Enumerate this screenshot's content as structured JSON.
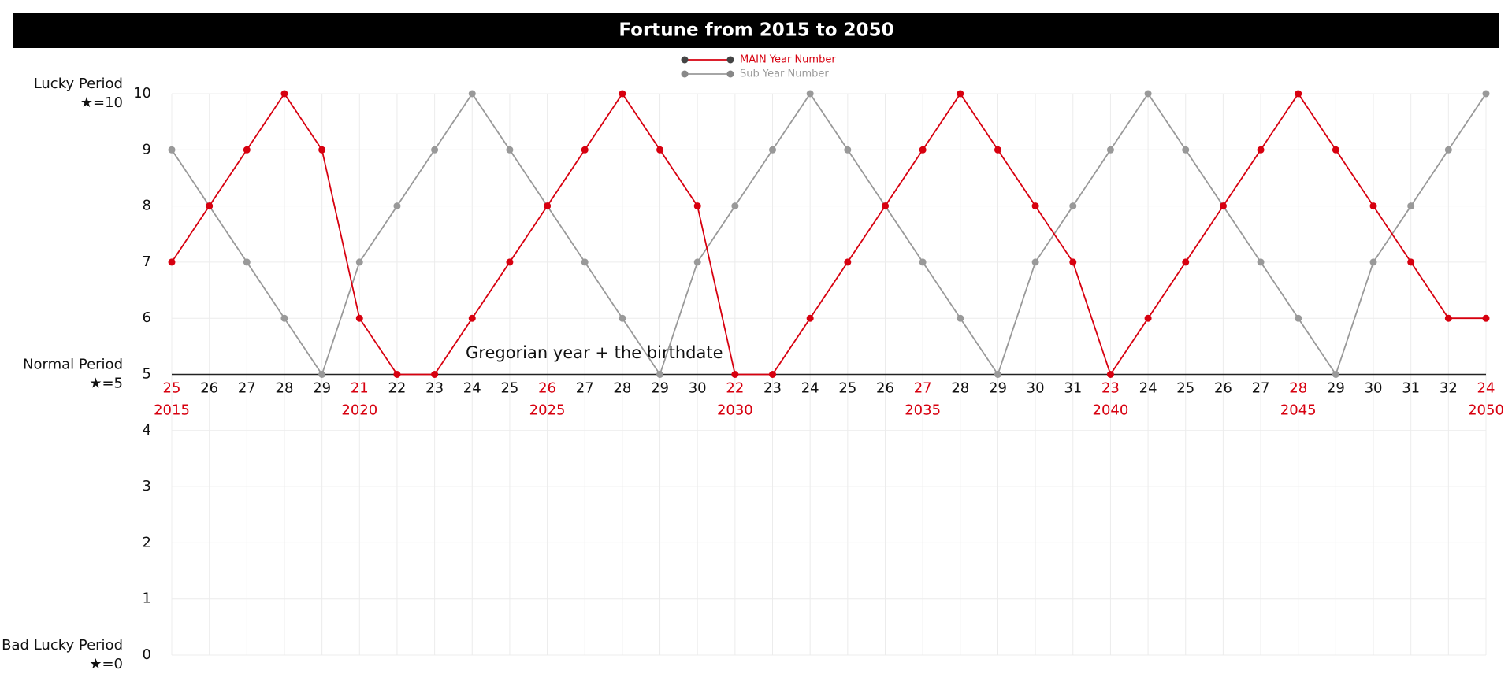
{
  "chart_data": {
    "type": "line",
    "title": "Fortune from 2015 to 2050",
    "annotation": "Gregorian year + the birthdate",
    "side_labels": [
      {
        "title": "Lucky Period",
        "note": "★=10",
        "value": 10
      },
      {
        "title": "Normal Period",
        "note": "★=5",
        "value": 5
      },
      {
        "title": "Bad Lucky Period",
        "note": "★=0",
        "value": 0
      }
    ],
    "categories": [
      25,
      26,
      27,
      28,
      29,
      21,
      22,
      23,
      24,
      25,
      26,
      27,
      28,
      29,
      30,
      22,
      23,
      24,
      25,
      26,
      27,
      28,
      29,
      30,
      31,
      23,
      24,
      25,
      26,
      27,
      28,
      29,
      30,
      31,
      32,
      24
    ],
    "years": [
      2015,
      null,
      null,
      null,
      null,
      2020,
      null,
      null,
      null,
      null,
      2025,
      null,
      null,
      null,
      null,
      2030,
      null,
      null,
      null,
      null,
      2035,
      null,
      null,
      null,
      null,
      2040,
      null,
      null,
      null,
      null,
      2045,
      null,
      null,
      null,
      null,
      2050
    ],
    "year_label_color": "#d7000f",
    "series": [
      {
        "name": "MAIN Year Number",
        "color": "#d7000f",
        "values": [
          7,
          8,
          9,
          10,
          9,
          6,
          5,
          5,
          6,
          7,
          8,
          9,
          10,
          9,
          8,
          5,
          5,
          6,
          7,
          8,
          9,
          10,
          9,
          8,
          7,
          5,
          6,
          7,
          8,
          9,
          10,
          9,
          8,
          7,
          6,
          6
        ]
      },
      {
        "name": "Sub Year Number",
        "color": "#999999",
        "values": [
          9,
          8,
          7,
          6,
          5,
          7,
          8,
          9,
          10,
          9,
          8,
          7,
          6,
          5,
          7,
          8,
          9,
          10,
          9,
          8,
          7,
          6,
          5,
          7,
          8,
          9,
          10,
          9,
          8,
          7,
          6,
          5,
          7,
          8,
          9,
          10
        ]
      }
    ],
    "ylim": [
      0,
      10
    ],
    "yticks": [
      0,
      1,
      2,
      3,
      4,
      5,
      6,
      7,
      8,
      9,
      10
    ],
    "reference_line": 5,
    "grid": true,
    "legend": "top"
  }
}
